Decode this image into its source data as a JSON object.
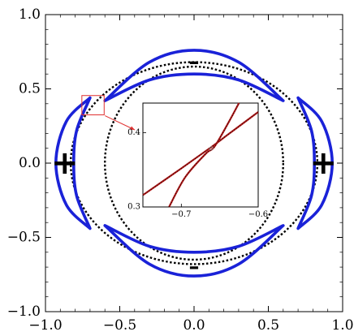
{
  "chart_data": {
    "type": "line",
    "title": "",
    "xlabel": "",
    "ylabel": "",
    "xlim": [
      -1.0,
      1.0
    ],
    "ylim": [
      -1.0,
      1.0
    ],
    "grid": false,
    "x_ticks": [
      {
        "value": -1.0,
        "label": "−1.0"
      },
      {
        "value": -0.5,
        "label": "−0.5"
      },
      {
        "value": 0.0,
        "label": "0.0"
      },
      {
        "value": 0.5,
        "label": "0.5"
      },
      {
        "value": 1.0,
        "label": "1.0"
      }
    ],
    "y_ticks": [
      {
        "value": 1.0,
        "label": "1.0"
      },
      {
        "value": 0.5,
        "label": "0.5"
      },
      {
        "value": 0.0,
        "label": "0.0"
      },
      {
        "value": -0.5,
        "label": "−0.5"
      },
      {
        "value": -1.0,
        "label": "−1.0"
      }
    ],
    "colors": {
      "blue_curve": "#1a22d8",
      "dotted_curve": "#000000",
      "inset_curve": "#b01818",
      "highlight_box": "#e03030",
      "frame": "#000000"
    },
    "curves": {
      "dotted_ellipse_1": {
        "cx": 0.0,
        "cy": 0.0,
        "rx": 0.83,
        "ry": 0.68,
        "style": "dotted"
      },
      "dotted_ellipse_2": {
        "cx": 0.0,
        "cy": 0.0,
        "rx": 0.6,
        "ry": 0.65,
        "style": "dotted"
      },
      "crescent_top": {
        "outer": [
          [
            -0.6,
            0.42
          ],
          [
            -0.3,
            0.68
          ],
          [
            0.0,
            0.76
          ],
          [
            0.3,
            0.68
          ],
          [
            0.6,
            0.42
          ]
        ],
        "inner": [
          [
            0.6,
            0.42
          ],
          [
            0.3,
            0.56
          ],
          [
            0.0,
            0.6
          ],
          [
            -0.3,
            0.56
          ],
          [
            -0.6,
            0.42
          ]
        ]
      },
      "crescent_bottom": {
        "outer": [
          [
            -0.6,
            -0.42
          ],
          [
            -0.3,
            -0.68
          ],
          [
            0.0,
            -0.76
          ],
          [
            0.3,
            -0.68
          ],
          [
            0.6,
            -0.42
          ]
        ],
        "inner": [
          [
            0.6,
            -0.42
          ],
          [
            0.3,
            -0.56
          ],
          [
            0.0,
            -0.6
          ],
          [
            -0.3,
            -0.56
          ],
          [
            -0.6,
            -0.42
          ]
        ]
      },
      "crescent_left": {
        "outer": [
          [
            -0.7,
            0.44
          ],
          [
            -0.86,
            0.28
          ],
          [
            -0.93,
            0.0
          ],
          [
            -0.86,
            -0.28
          ],
          [
            -0.7,
            -0.44
          ]
        ],
        "inner": [
          [
            -0.7,
            -0.44
          ],
          [
            -0.79,
            -0.22
          ],
          [
            -0.81,
            0.0
          ],
          [
            -0.79,
            0.22
          ],
          [
            -0.7,
            0.44
          ]
        ]
      },
      "crescent_right": {
        "outer": [
          [
            0.7,
            0.44
          ],
          [
            0.86,
            0.28
          ],
          [
            0.93,
            0.0
          ],
          [
            0.86,
            -0.28
          ],
          [
            0.7,
            -0.44
          ]
        ],
        "inner": [
          [
            0.7,
            -0.44
          ],
          [
            0.79,
            -0.22
          ],
          [
            0.81,
            0.0
          ],
          [
            0.79,
            0.22
          ],
          [
            0.7,
            0.44
          ]
        ]
      }
    },
    "annotations": [
      {
        "text": "–",
        "x": 0.0,
        "y": 0.68,
        "size": 26
      },
      {
        "text": "–",
        "x": 0.0,
        "y": -0.7,
        "size": 26
      },
      {
        "text": "+",
        "x": -0.87,
        "y": 0.0,
        "size": 40
      },
      {
        "text": "+",
        "x": 0.87,
        "y": 0.0,
        "size": 40
      }
    ],
    "highlight_box": {
      "x": [
        -0.755,
        -0.605
      ],
      "y": [
        0.325,
        0.455
      ]
    },
    "inset": {
      "xlim": [
        -0.75,
        -0.6
      ],
      "ylim": [
        0.3,
        0.44
      ],
      "x_ticks": [
        {
          "value": -0.7,
          "label": "−0.7"
        },
        {
          "value": -0.6,
          "label": "−0.6"
        }
      ],
      "y_ticks": [
        {
          "value": 0.4,
          "label": "0.4"
        },
        {
          "value": 0.3,
          "label": "0.3"
        }
      ],
      "curves": [
        {
          "points": [
            [
              -0.75,
              0.316
            ],
            [
              -0.7,
              0.352
            ],
            [
              -0.662,
              0.38
            ],
            [
              -0.64,
              0.397
            ],
            [
              -0.6,
              0.428
            ]
          ]
        },
        {
          "points": [
            [
              -0.716,
              0.3
            ],
            [
              -0.695,
              0.34
            ],
            [
              -0.668,
              0.372
            ],
            [
              -0.657,
              0.381
            ],
            [
              -0.638,
              0.415
            ],
            [
              -0.625,
              0.44
            ]
          ]
        }
      ]
    }
  }
}
